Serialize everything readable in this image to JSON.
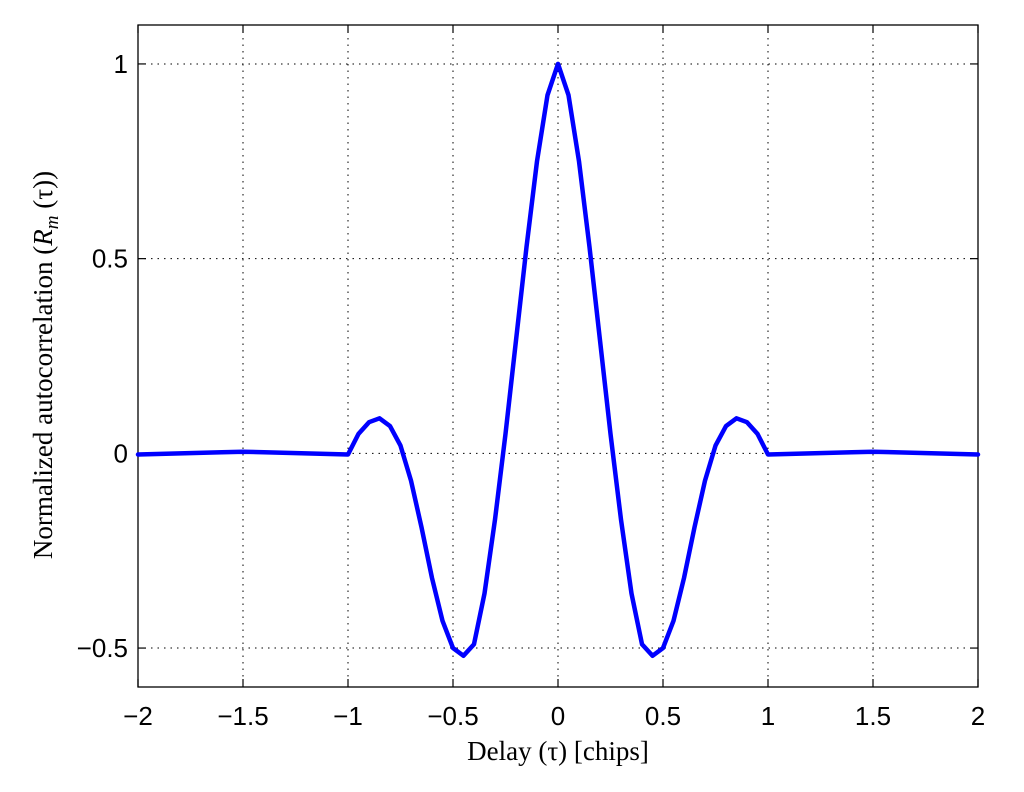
{
  "chart_data": {
    "type": "line",
    "title": "",
    "xlabel": "Delay (τ) [chips]",
    "ylabel": "Normalized autocorrelation (R_m (τ))",
    "ylabel_parts": {
      "main": "Normalized autocorrelation (",
      "r": "R",
      "sub": "m",
      "tail": " (τ))"
    },
    "xlim": [
      -2,
      2
    ],
    "ylim": [
      -0.6,
      1.1
    ],
    "xticks": [
      -2,
      -1.5,
      -1,
      -0.5,
      0,
      0.5,
      1,
      1.5,
      2
    ],
    "xtick_labels": [
      "−2",
      "−1.5",
      "−1",
      "−0.5",
      "0",
      "0.5",
      "1",
      "1.5",
      "2"
    ],
    "yticks": [
      -0.5,
      0,
      0.5,
      1
    ],
    "ytick_labels": [
      "−0.5",
      "0",
      "0.5",
      "1"
    ],
    "grid": true,
    "line_color": "#0000ff",
    "series": [
      {
        "x": [
          -2,
          -1.8,
          -1.6,
          -1.5,
          -1.4,
          -1.2,
          -1.0,
          -0.95,
          -0.9,
          -0.85,
          -0.8,
          -0.75,
          -0.7,
          -0.65,
          -0.6,
          -0.55,
          -0.5,
          -0.45,
          -0.4,
          -0.35,
          -0.3,
          -0.25,
          -0.2,
          -0.15,
          -0.1,
          -0.05,
          0,
          0.05,
          0.1,
          0.15,
          0.2,
          0.25,
          0.3,
          0.35,
          0.4,
          0.45,
          0.5,
          0.55,
          0.6,
          0.65,
          0.7,
          0.75,
          0.8,
          0.85,
          0.9,
          0.95,
          1.0,
          1.2,
          1.4,
          1.5,
          1.6,
          1.8,
          2
        ],
        "y": [
          -0.003,
          0,
          0.003,
          0.004,
          0.003,
          0,
          -0.003,
          0.05,
          0.08,
          0.09,
          0.07,
          0.02,
          -0.07,
          -0.19,
          -0.32,
          -0.43,
          -0.5,
          -0.52,
          -0.49,
          -0.36,
          -0.17,
          0.05,
          0.29,
          0.53,
          0.75,
          0.92,
          1.0,
          0.92,
          0.75,
          0.53,
          0.29,
          0.05,
          -0.17,
          -0.36,
          -0.49,
          -0.52,
          -0.5,
          -0.43,
          -0.32,
          -0.19,
          -0.07,
          0.02,
          0.07,
          0.09,
          0.08,
          0.05,
          -0.003,
          0,
          0.003,
          0.004,
          0.003,
          0,
          -0.003
        ]
      }
    ]
  }
}
